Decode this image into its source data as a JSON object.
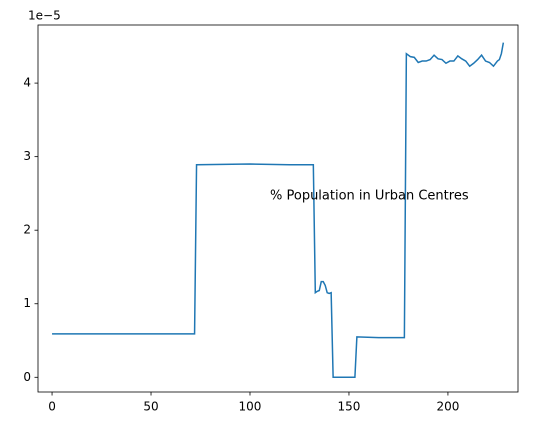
{
  "chart_data": {
    "type": "line",
    "annotation": "% Population in Urban Centres",
    "y_offset_label": "1e−5",
    "x": [
      0,
      72,
      73,
      100,
      120,
      132,
      133,
      134,
      135,
      136,
      137,
      138,
      139,
      140,
      141,
      142,
      153,
      154,
      165,
      178,
      179,
      181,
      183,
      185,
      187,
      189,
      191,
      193,
      195,
      197,
      199,
      201,
      203,
      205,
      207,
      209,
      211,
      213,
      215,
      217,
      219,
      221,
      223,
      225,
      226,
      227,
      228
    ],
    "series": [
      {
        "color": "#1f77b4",
        "values": [
          0.59,
          0.59,
          2.89,
          2.9,
          2.89,
          2.89,
          1.15,
          1.17,
          1.18,
          1.3,
          1.3,
          1.25,
          1.15,
          1.14,
          1.15,
          0.0,
          0.0,
          0.55,
          0.54,
          0.54,
          4.4,
          4.36,
          4.35,
          4.28,
          4.3,
          4.3,
          4.32,
          4.38,
          4.33,
          4.32,
          4.27,
          4.3,
          4.3,
          4.37,
          4.33,
          4.3,
          4.23,
          4.27,
          4.32,
          4.38,
          4.3,
          4.28,
          4.23,
          4.3,
          4.32,
          4.4,
          4.55
        ]
      }
    ],
    "xlim": [
      -7.1,
      235.4
    ],
    "xticks": [
      0,
      50,
      100,
      150,
      200
    ],
    "ylim": [
      -0.2,
      4.79
    ],
    "yticks": [
      0,
      1,
      2,
      3,
      4
    ],
    "grid": false
  }
}
